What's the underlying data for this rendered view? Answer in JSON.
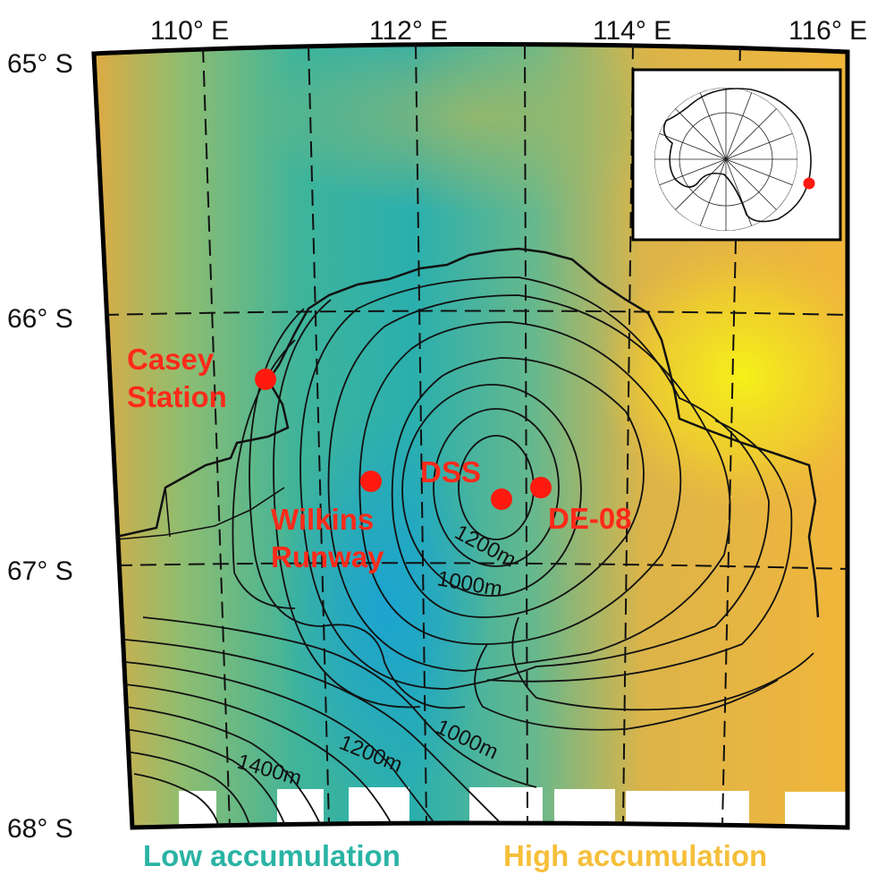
{
  "longitude_labels": [
    "110° E",
    "112° E",
    "114° E",
    "116° E"
  ],
  "latitude_labels": [
    "65° S",
    "66° S",
    "67° S",
    "68° S"
  ],
  "places": [
    {
      "name": "Casey Station"
    },
    {
      "name": "Wilkins Runway"
    },
    {
      "name": "DSS"
    },
    {
      "name": "DE-08"
    }
  ],
  "contour_labels": [
    "1200m",
    "1000m",
    "1000m",
    "1200m",
    "1400m"
  ],
  "legend": {
    "low": {
      "label": "Low accumulation",
      "color": "#2ab3a4"
    },
    "high": {
      "label": "High accumulation",
      "color": "#f5bf3a"
    }
  },
  "colors": {
    "marker": "#ff1a0f",
    "label": "#ff2a1a",
    "colormap": [
      "#1fa0d0",
      "#2bb3a6",
      "#6cbd84",
      "#b5b45a",
      "#f1b43a",
      "#f3ec1e"
    ]
  }
}
